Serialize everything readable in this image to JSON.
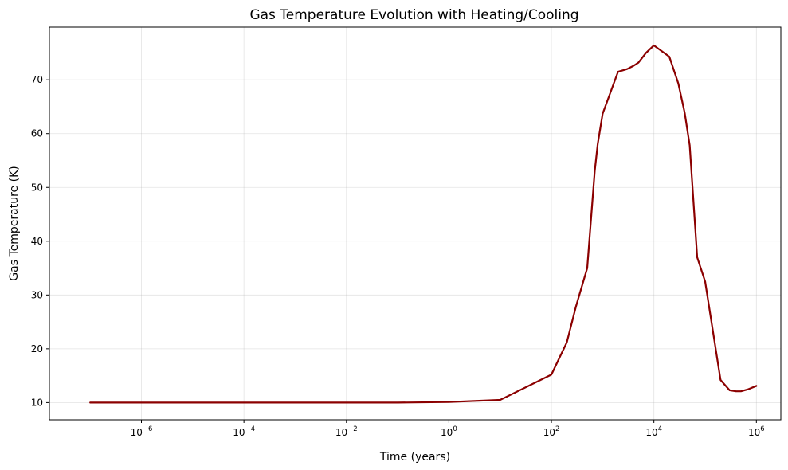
{
  "chart_data": {
    "type": "line",
    "title": "Gas Temperature Evolution with Heating/Cooling",
    "xlabel": "Time (years)",
    "ylabel": "Gas Temperature (K)",
    "xscale": "log",
    "xlim": [
      1.6e-08,
      3000000.0
    ],
    "ylim": [
      6.8,
      79.8
    ],
    "grid": true,
    "x_ticks": [
      {
        "value": 1e-06,
        "base": "10",
        "exp": "−6"
      },
      {
        "value": 0.0001,
        "base": "10",
        "exp": "−4"
      },
      {
        "value": 0.01,
        "base": "10",
        "exp": "−2"
      },
      {
        "value": 1,
        "base": "10",
        "exp": "0"
      },
      {
        "value": 100,
        "base": "10",
        "exp": "2"
      },
      {
        "value": 10000,
        "base": "10",
        "exp": "4"
      },
      {
        "value": 1000000,
        "base": "10",
        "exp": "6"
      }
    ],
    "y_ticks": [
      {
        "value": 10,
        "label": "10"
      },
      {
        "value": 20,
        "label": "20"
      },
      {
        "value": 30,
        "label": "30"
      },
      {
        "value": 40,
        "label": "40"
      },
      {
        "value": 50,
        "label": "50"
      },
      {
        "value": 60,
        "label": "60"
      },
      {
        "value": 70,
        "label": "70"
      }
    ],
    "series": [
      {
        "color": "#8b0000",
        "x": [
          1e-07,
          1e-06,
          1e-05,
          0.0001,
          0.001,
          0.01,
          0.1,
          1,
          10,
          100,
          200,
          300,
          500,
          700,
          800,
          1000,
          2000,
          3000,
          4000,
          5000,
          7000,
          10000,
          20000,
          30000,
          40000,
          50000,
          70000,
          100000,
          200000,
          300000,
          400000,
          500000,
          700000,
          1000000
        ],
        "y": [
          10,
          10,
          10,
          10,
          10,
          10,
          10,
          10.1,
          10.5,
          15.2,
          21.2,
          27.8,
          35.0,
          53.0,
          58.0,
          63.7,
          71.5,
          72.0,
          72.6,
          73.2,
          75.0,
          76.4,
          74.3,
          69.3,
          63.8,
          57.8,
          37.0,
          32.5,
          14.2,
          12.3,
          12.1,
          12.1,
          12.5,
          13.1
        ]
      }
    ]
  }
}
